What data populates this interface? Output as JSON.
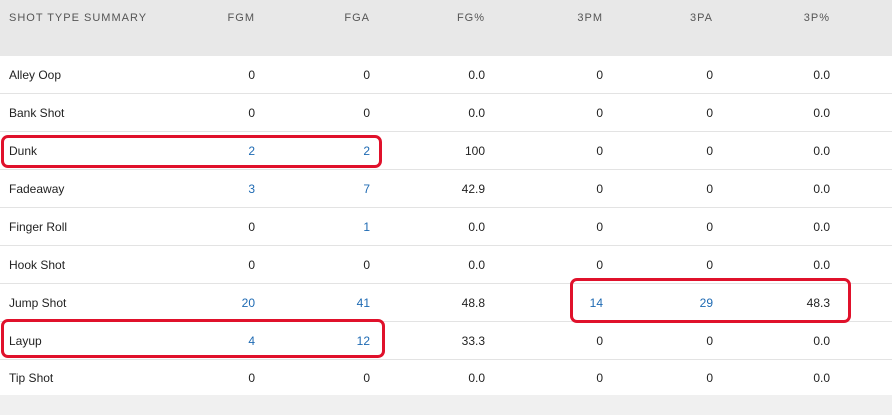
{
  "table": {
    "headers": [
      "SHOT TYPE SUMMARY",
      "FGM",
      "FGA",
      "FG%",
      "3PM",
      "3PA",
      "3P%"
    ],
    "rows": [
      {
        "name": "Alley Oop",
        "fgm": "0",
        "fga": "0",
        "fgp": "0.0",
        "tpm": "0",
        "tpa": "0",
        "tpp": "0.0"
      },
      {
        "name": "Bank Shot",
        "fgm": "0",
        "fga": "0",
        "fgp": "0.0",
        "tpm": "0",
        "tpa": "0",
        "tpp": "0.0"
      },
      {
        "name": "Dunk",
        "fgm": "2",
        "fga": "2",
        "fgp": "100",
        "tpm": "0",
        "tpa": "0",
        "tpp": "0.0"
      },
      {
        "name": "Fadeaway",
        "fgm": "3",
        "fga": "7",
        "fgp": "42.9",
        "tpm": "0",
        "tpa": "0",
        "tpp": "0.0"
      },
      {
        "name": "Finger Roll",
        "fgm": "0",
        "fga": "1",
        "fgp": "0.0",
        "tpm": "0",
        "tpa": "0",
        "tpp": "0.0"
      },
      {
        "name": "Hook Shot",
        "fgm": "0",
        "fga": "0",
        "fgp": "0.0",
        "tpm": "0",
        "tpa": "0",
        "tpp": "0.0"
      },
      {
        "name": "Jump Shot",
        "fgm": "20",
        "fga": "41",
        "fgp": "48.8",
        "tpm": "14",
        "tpa": "29",
        "tpp": "48.3"
      },
      {
        "name": "Layup",
        "fgm": "4",
        "fga": "12",
        "fgp": "33.3",
        "tpm": "0",
        "tpa": "0",
        "tpp": "0.0"
      },
      {
        "name": "Tip Shot",
        "fgm": "0",
        "fga": "0",
        "fgp": "0.0",
        "tpm": "0",
        "tpa": "0",
        "tpp": "0.0"
      }
    ]
  },
  "colors": {
    "link": "#1e6ab3",
    "highlight": "#e0112b",
    "header_bg": "#e8e8e8"
  }
}
